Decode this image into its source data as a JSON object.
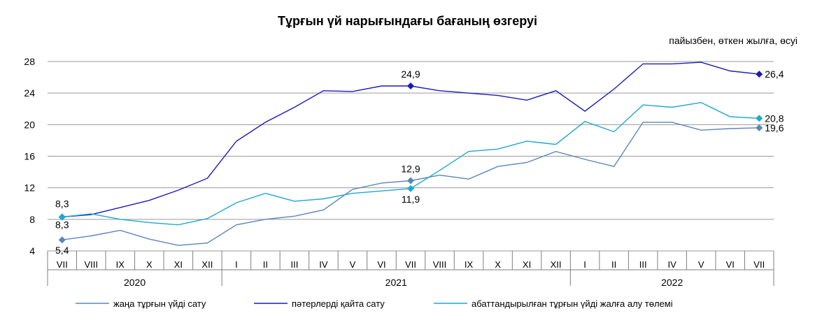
{
  "chart_data": {
    "type": "line",
    "title": "Тұрғын үй нарығындағы бағаның өзгеруі",
    "subtitle": "пайызбен, өткен жылға, өсуі",
    "x": [
      "VII",
      "VIII",
      "IX",
      "X",
      "XI",
      "XII",
      "I",
      "II",
      "III",
      "IV",
      "V",
      "VI",
      "VII",
      "VIII",
      "IX",
      "X",
      "XI",
      "XII",
      "I",
      "II",
      "III",
      "IV",
      "V",
      "VI",
      "VII"
    ],
    "year_groups": [
      {
        "label": "2020",
        "start": 0,
        "end": 5
      },
      {
        "label": "2021",
        "start": 6,
        "end": 17
      },
      {
        "label": "2022",
        "start": 18,
        "end": 24
      }
    ],
    "ylim": [
      4,
      28
    ],
    "yticks": [
      4,
      8,
      12,
      16,
      20,
      24,
      28
    ],
    "grid": true,
    "legend_position": "bottom",
    "series": [
      {
        "name": "жаңа тұрғын  үйді сату",
        "color": "#5b86b8",
        "values": [
          5.4,
          5.9,
          6.6,
          5.5,
          4.7,
          5.0,
          7.3,
          8.0,
          8.4,
          9.2,
          11.8,
          12.6,
          12.9,
          13.6,
          13.1,
          14.7,
          15.2,
          16.6,
          15.6,
          14.7,
          20.3,
          20.3,
          19.3,
          19.5,
          19.6
        ],
        "labels": [
          {
            "index": 0,
            "text": "5,4"
          },
          {
            "index": 12,
            "text": "12,9"
          },
          {
            "index": 24,
            "text": "19,6"
          }
        ]
      },
      {
        "name": "пәтерлерді қайта сату",
        "color": "#1c1cb4",
        "values": [
          8.3,
          8.6,
          9.5,
          10.4,
          11.7,
          13.2,
          17.9,
          20.3,
          22.2,
          24.3,
          24.2,
          24.9,
          24.9,
          24.3,
          24.0,
          23.7,
          23.1,
          24.3,
          21.7,
          24.5,
          27.7,
          27.7,
          27.9,
          26.8,
          26.4
        ],
        "labels": [
          {
            "index": 0,
            "text": "8,3"
          },
          {
            "index": 12,
            "text": "24,9"
          },
          {
            "index": 24,
            "text": "26,4"
          }
        ]
      },
      {
        "name": "абаттандырылған тұрғын  үйді жалға  алу төлемі",
        "color": "#1ea8d0",
        "values": [
          8.3,
          8.7,
          8.0,
          7.6,
          7.3,
          8.1,
          10.1,
          11.3,
          10.3,
          10.6,
          11.3,
          11.6,
          11.9,
          14.2,
          16.6,
          16.9,
          17.9,
          17.5,
          20.4,
          19.1,
          22.5,
          22.2,
          22.8,
          21.0,
          20.8
        ],
        "labels": [
          {
            "index": 0,
            "text": "8,3"
          },
          {
            "index": 12,
            "text": "11,9"
          },
          {
            "index": 24,
            "text": "20,8"
          }
        ]
      }
    ]
  }
}
